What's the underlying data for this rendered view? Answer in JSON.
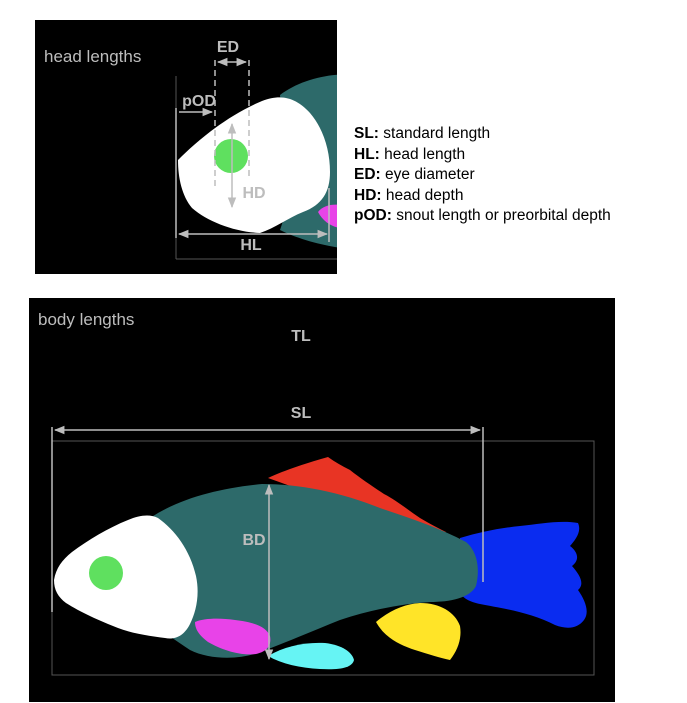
{
  "head_panel": {
    "title": "head lengths",
    "labels": {
      "ed": "ED",
      "pod": "pOD",
      "hd": "HD",
      "hl": "HL"
    }
  },
  "body_panel": {
    "title": "body lengths",
    "labels": {
      "tl": "TL",
      "sl": "SL",
      "bd": "BD"
    }
  },
  "legend": [
    {
      "abbr": "SL:",
      "text": "standard length"
    },
    {
      "abbr": "HL:",
      "text": "head length"
    },
    {
      "abbr": "ED:",
      "text": "eye diameter"
    },
    {
      "abbr": "HD:",
      "text": "head depth"
    },
    {
      "abbr": "pOD:",
      "text": "snout length or preorbital depth"
    }
  ],
  "colors": {
    "background": "#000000",
    "fish_body": "#2d6a6a",
    "head": "#ffffff",
    "eye": "#5fe05f",
    "dorsal_fin": "#e83424",
    "caudal_fin": "#0a2cf0",
    "anal_fin": "#ffe428",
    "pelvic_fin": "#66f4f4",
    "pectoral_fin": "#e843e8",
    "measure_lines": "#bdbdbd"
  }
}
